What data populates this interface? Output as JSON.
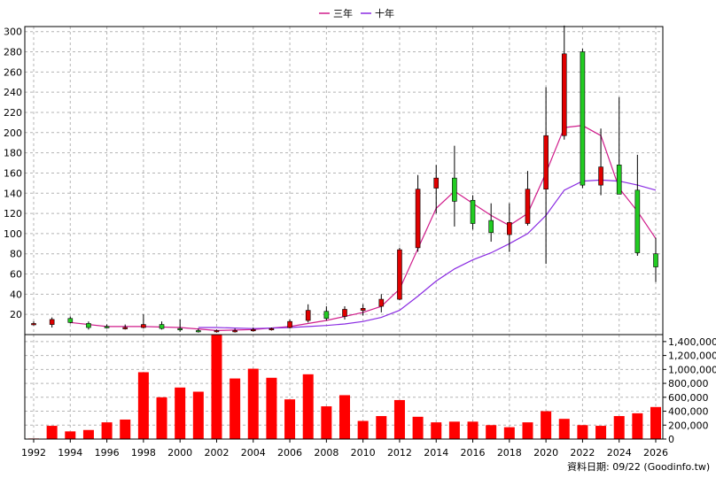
{
  "legend": [
    {
      "label": "三年",
      "color": "#d01c8b"
    },
    {
      "label": "十年",
      "color": "#8a2be2"
    }
  ],
  "footer": {
    "source": "資料日期: 09/22  (Goodinfo.tw)"
  },
  "colors": {
    "up": "#e00000",
    "down": "#22cc22",
    "volume": "#ff0000",
    "wick": "#000000"
  },
  "chart_data": [
    {
      "type": "candlestick",
      "title": "",
      "x_ticks": [
        "1992",
        "1994",
        "1996",
        "1998",
        "2000",
        "2002",
        "2004",
        "2006",
        "2008",
        "2010",
        "2012",
        "2014",
        "2016",
        "2018",
        "2020",
        "2022",
        "2024",
        "2026"
      ],
      "ylim": [
        0,
        305
      ],
      "y_ticks": [
        20,
        40,
        60,
        80,
        100,
        120,
        140,
        160,
        180,
        200,
        220,
        240,
        260,
        280,
        300
      ],
      "grid": true,
      "legend_position": "top-center",
      "candles": [
        {
          "year": 1992,
          "open": 11,
          "high": 13,
          "low": 9,
          "close": 11
        },
        {
          "year": 1993,
          "open": 10,
          "high": 17,
          "low": 7,
          "close": 15
        },
        {
          "year": 1994,
          "open": 16,
          "high": 18,
          "low": 11,
          "close": 12
        },
        {
          "year": 1995,
          "open": 11,
          "high": 13,
          "low": 5,
          "close": 7
        },
        {
          "year": 1996,
          "open": 8,
          "high": 10,
          "low": 6,
          "close": 7
        },
        {
          "year": 1997,
          "open": 7,
          "high": 10,
          "low": 5,
          "close": 7
        },
        {
          "year": 1998,
          "open": 7,
          "high": 20,
          "low": 6,
          "close": 10
        },
        {
          "year": 1999,
          "open": 10,
          "high": 13,
          "low": 5,
          "close": 6
        },
        {
          "year": 2000,
          "open": 6,
          "high": 15,
          "low": 3,
          "close": 5
        },
        {
          "year": 2001,
          "open": 4,
          "high": 6,
          "low": 2,
          "close": 3
        },
        {
          "year": 2002,
          "open": 3,
          "high": 5,
          "low": 2,
          "close": 4
        },
        {
          "year": 2003,
          "open": 3,
          "high": 6,
          "low": 2,
          "close": 4
        },
        {
          "year": 2004,
          "open": 4,
          "high": 7,
          "low": 3,
          "close": 5
        },
        {
          "year": 2005,
          "open": 5,
          "high": 7,
          "low": 4,
          "close": 6
        },
        {
          "year": 2006,
          "open": 7,
          "high": 15,
          "low": 6,
          "close": 13
        },
        {
          "year": 2007,
          "open": 14,
          "high": 30,
          "low": 12,
          "close": 24
        },
        {
          "year": 2008,
          "open": 23,
          "high": 28,
          "low": 14,
          "close": 16
        },
        {
          "year": 2009,
          "open": 18,
          "high": 28,
          "low": 15,
          "close": 25
        },
        {
          "year": 2010,
          "open": 24,
          "high": 30,
          "low": 19,
          "close": 26
        },
        {
          "year": 2011,
          "open": 28,
          "high": 40,
          "low": 22,
          "close": 35
        },
        {
          "year": 2012,
          "open": 35,
          "high": 86,
          "low": 34,
          "close": 84
        },
        {
          "year": 2013,
          "open": 86,
          "high": 158,
          "low": 82,
          "close": 144
        },
        {
          "year": 2014,
          "open": 145,
          "high": 168,
          "low": 120,
          "close": 155
        },
        {
          "year": 2015,
          "open": 155,
          "high": 187,
          "low": 107,
          "close": 132
        },
        {
          "year": 2016,
          "open": 133,
          "high": 138,
          "low": 104,
          "close": 110
        },
        {
          "year": 2017,
          "open": 113,
          "high": 130,
          "low": 92,
          "close": 101
        },
        {
          "year": 2018,
          "open": 99,
          "high": 130,
          "low": 82,
          "close": 111
        },
        {
          "year": 2019,
          "open": 110,
          "high": 162,
          "low": 108,
          "close": 144
        },
        {
          "year": 2020,
          "open": 144,
          "high": 245,
          "low": 70,
          "close": 197
        },
        {
          "year": 2021,
          "open": 197,
          "high": 306,
          "low": 193,
          "close": 278
        },
        {
          "year": 2022,
          "open": 280,
          "high": 283,
          "low": 145,
          "close": 148
        },
        {
          "year": 2023,
          "open": 148,
          "high": 204,
          "low": 138,
          "close": 166
        },
        {
          "year": 2024,
          "open": 168,
          "high": 235,
          "low": 140,
          "close": 139
        },
        {
          "year": 2025,
          "open": 143,
          "high": 178,
          "low": 78,
          "close": 81
        },
        {
          "year": 2026,
          "open": 80,
          "high": 96,
          "low": 52,
          "close": 67
        }
      ],
      "series": [
        {
          "name": "三年",
          "x": [
            1994,
            1996,
            1998,
            2000,
            2002,
            2004,
            2006,
            2008,
            2010,
            2011,
            2012,
            2013,
            2014,
            2015,
            2016,
            2017,
            2018,
            2019,
            2020,
            2021,
            2022,
            2023,
            2024,
            2025,
            2026
          ],
          "values": [
            12,
            8,
            8,
            7,
            4,
            5,
            8,
            14,
            22,
            28,
            45,
            85,
            125,
            142,
            130,
            118,
            108,
            120,
            160,
            205,
            207,
            197,
            145,
            122,
            95
          ]
        },
        {
          "name": "十年",
          "x": [
            2001,
            2002,
            2003,
            2004,
            2005,
            2006,
            2007,
            2008,
            2009,
            2010,
            2011,
            2012,
            2013,
            2014,
            2015,
            2016,
            2017,
            2018,
            2019,
            2020,
            2021,
            2022,
            2023,
            2024,
            2025,
            2026
          ],
          "values": [
            7,
            7,
            6.5,
            6,
            6.5,
            7,
            8,
            9,
            10.5,
            13,
            17,
            24,
            38,
            53,
            65,
            74,
            81,
            90,
            100,
            118,
            143,
            152,
            153,
            152,
            148,
            143
          ]
        }
      ]
    },
    {
      "type": "bar",
      "title": "",
      "ylim": [
        0,
        1500000
      ],
      "y_ticks": [
        "0",
        "200,000",
        "400,000",
        "600,000",
        "800,000",
        "1,000,000",
        "1,200,000",
        "1,400,000"
      ],
      "x": [
        1992,
        1993,
        1994,
        1995,
        1996,
        1997,
        1998,
        1999,
        2000,
        2001,
        2002,
        2003,
        2004,
        2005,
        2006,
        2007,
        2008,
        2009,
        2010,
        2011,
        2012,
        2013,
        2014,
        2015,
        2016,
        2017,
        2018,
        2019,
        2020,
        2021,
        2022,
        2023,
        2024,
        2025,
        2026
      ],
      "values": [
        8000,
        190000,
        110000,
        130000,
        240000,
        280000,
        960000,
        600000,
        740000,
        680000,
        1500000,
        870000,
        1010000,
        880000,
        570000,
        930000,
        470000,
        630000,
        260000,
        330000,
        560000,
        320000,
        240000,
        250000,
        250000,
        200000,
        170000,
        240000,
        400000,
        290000,
        200000,
        190000,
        330000,
        370000,
        460000
      ]
    }
  ]
}
